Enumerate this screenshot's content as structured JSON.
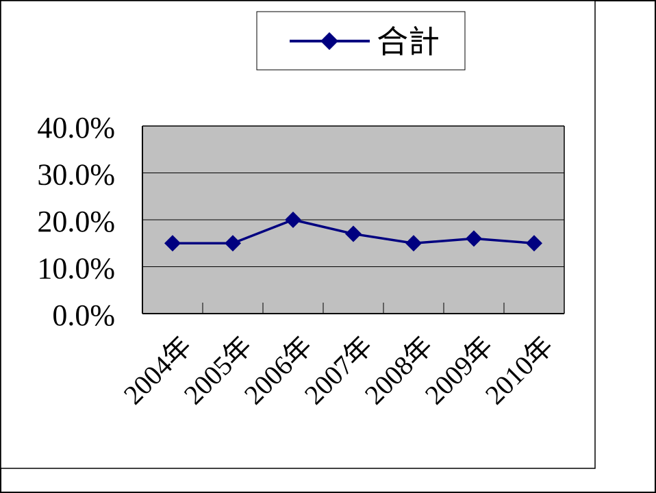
{
  "chart_data": {
    "type": "line",
    "title": "",
    "xlabel": "",
    "ylabel": "",
    "categories": [
      "2004年",
      "2005年",
      "2006年",
      "2007年",
      "2008年",
      "2009年",
      "2010年"
    ],
    "series": [
      {
        "name": "合計",
        "color": "#000080",
        "marker": "diamond",
        "values": [
          0.15,
          0.15,
          0.2,
          0.17,
          0.15,
          0.16,
          0.15
        ]
      }
    ],
    "ylim": [
      0,
      0.4
    ],
    "yticks": [
      0,
      0.1,
      0.2,
      0.3,
      0.4
    ],
    "ytick_labels": [
      "0.0%",
      "10.0%",
      "20.0%",
      "30.0%",
      "40.0%"
    ],
    "grid": true,
    "plot_background": "#c0c0c0",
    "legend_position": "top"
  }
}
